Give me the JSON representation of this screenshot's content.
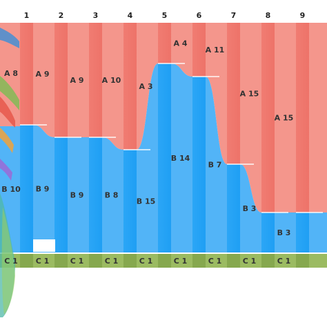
{
  "chart_data": {
    "type": "bar",
    "categories": [
      "1",
      "2",
      "3",
      "4",
      "5",
      "6",
      "7",
      "8",
      "9"
    ],
    "series": [
      {
        "labels": [
          "A 9",
          "A 9",
          "A 10",
          "A 3",
          "A 4",
          "A 11",
          "A 15",
          "A 15",
          ""
        ],
        "values": [
          148,
          166,
          166,
          184,
          59,
          78,
          205,
          275,
          275
        ],
        "color": "#f4968c"
      },
      {
        "labels": [
          "B 9",
          "B 9",
          "B 8",
          "B 15",
          "B 14",
          "B 7",
          "B 3",
          "B 3",
          ""
        ],
        "values": [
          185,
          167,
          148,
          148,
          276,
          257,
          131,
          61,
          61
        ],
        "color": "#45aef6"
      },
      {
        "labels": [
          "C 1",
          "C 1",
          "C 1",
          "C 1",
          "C 1",
          "C 1",
          "C 1",
          "C 1",
          ""
        ],
        "values": [
          20,
          20,
          20,
          20,
          20,
          20,
          20,
          20,
          20
        ],
        "color": "#8fb05a"
      }
    ],
    "left_partial_labels": [
      "A 8",
      "B 10",
      "C 1"
    ],
    "colors": {
      "a_band": "#f4968c",
      "a_stripe": "#f07c72",
      "b_band": "#52b4f7",
      "b_stripe": "#2aa5f5",
      "c_band": "#9bbb61",
      "c_stripe": "#86a84e"
    }
  }
}
